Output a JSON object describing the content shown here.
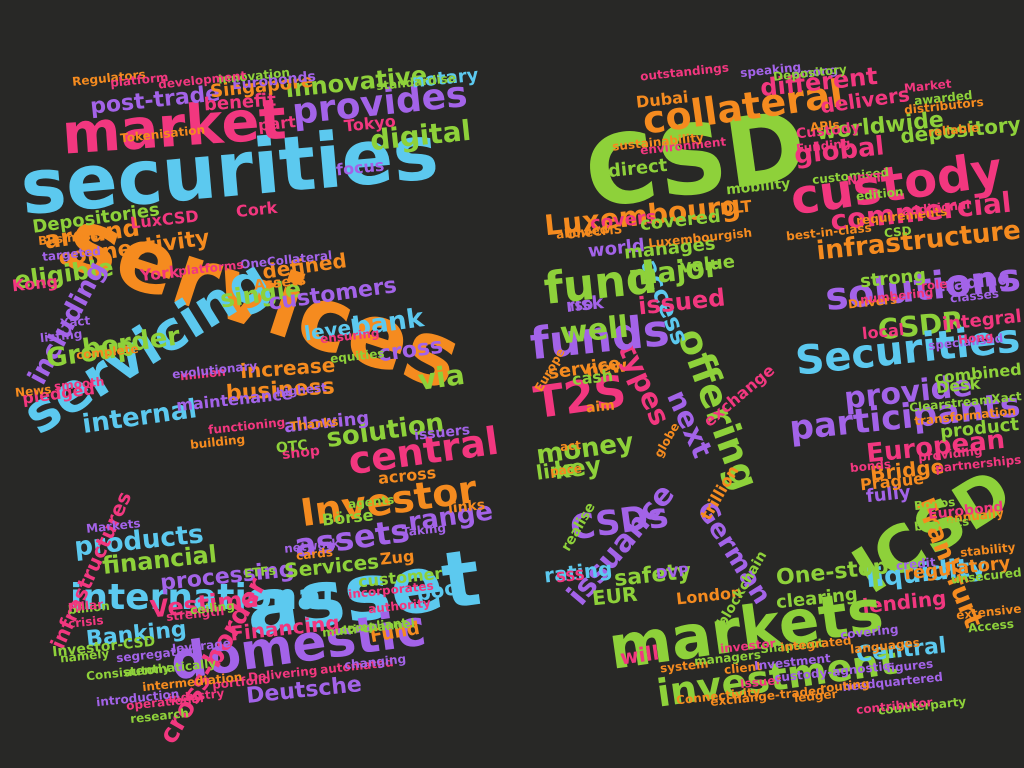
{
  "palette": {
    "background": "#282826",
    "blue": "#5cc9ef",
    "pink": "#f2377f",
    "orange": "#f58b1f",
    "purple": "#a363e8",
    "green": "#8ed13a"
  },
  "words": [
    {
      "text": "securities",
      "color": "blue"
    },
    {
      "text": "services",
      "color": "orange"
    },
    {
      "text": "market",
      "color": "pink"
    },
    {
      "text": "servicing",
      "color": "blue"
    },
    {
      "text": "asset",
      "color": "blue"
    },
    {
      "text": "domestic",
      "color": "purple"
    },
    {
      "text": "international",
      "color": "blue"
    },
    {
      "text": "provides",
      "color": "purple"
    },
    {
      "text": "digital",
      "color": "green"
    },
    {
      "text": "innovative",
      "color": "green"
    },
    {
      "text": "post-trade",
      "color": "purple"
    },
    {
      "text": "benefit",
      "color": "pink"
    },
    {
      "text": "Depositories",
      "color": "green"
    },
    {
      "text": "around",
      "color": "orange"
    },
    {
      "text": "connectivity",
      "color": "orange"
    },
    {
      "text": "eligible",
      "color": "green"
    },
    {
      "text": "including",
      "color": "purple"
    },
    {
      "text": "single",
      "color": "green"
    },
    {
      "text": "customers",
      "color": "purple"
    },
    {
      "text": "bank",
      "color": "blue"
    },
    {
      "text": "cross",
      "color": "purple"
    },
    {
      "text": "border",
      "color": "green"
    },
    {
      "text": "Group",
      "color": "green"
    },
    {
      "text": "pledged",
      "color": "pink"
    },
    {
      "text": "internal",
      "color": "blue"
    },
    {
      "text": "solution",
      "color": "green"
    },
    {
      "text": "central",
      "color": "pink"
    },
    {
      "text": "Investor",
      "color": "orange"
    },
    {
      "text": "range",
      "color": "purple"
    },
    {
      "text": "assets",
      "color": "purple"
    },
    {
      "text": "products",
      "color": "blue"
    },
    {
      "text": "financial",
      "color": "green"
    },
    {
      "text": "processing",
      "color": "purple"
    },
    {
      "text": "Services",
      "color": "green"
    },
    {
      "text": "Vestima",
      "color": "pink"
    },
    {
      "text": "Financing",
      "color": "pink"
    },
    {
      "text": "Banking",
      "color": "blue"
    },
    {
      "text": "Deutsche",
      "color": "purple"
    },
    {
      "text": "Fund",
      "color": "orange"
    },
    {
      "text": "pool",
      "color": "blue"
    },
    {
      "text": "infrastructures",
      "color": "pink"
    },
    {
      "text": "cross-border",
      "color": "pink"
    },
    {
      "text": "business",
      "color": "orange"
    },
    {
      "text": "increase",
      "color": "orange"
    },
    {
      "text": "via",
      "color": "green"
    },
    {
      "text": "level",
      "color": "blue"
    },
    {
      "text": "defined",
      "color": "orange"
    },
    {
      "text": "CSD",
      "color": "green"
    },
    {
      "text": "collateral",
      "color": "orange"
    },
    {
      "text": "custody",
      "color": "pink"
    },
    {
      "text": "delivers",
      "color": "pink"
    },
    {
      "text": "worldwide",
      "color": "green"
    },
    {
      "text": "global",
      "color": "pink"
    },
    {
      "text": "depository",
      "color": "green"
    },
    {
      "text": "different",
      "color": "pink"
    },
    {
      "text": "commercial",
      "color": "pink"
    },
    {
      "text": "infrastructure",
      "color": "orange"
    },
    {
      "text": "solutions",
      "color": "purple"
    },
    {
      "text": "CSDR",
      "color": "green"
    },
    {
      "text": "Securities",
      "color": "blue"
    },
    {
      "text": "provide",
      "color": "purple"
    },
    {
      "text": "participants",
      "color": "purple"
    },
    {
      "text": "European",
      "color": "pink"
    },
    {
      "text": "Bridge",
      "color": "orange"
    },
    {
      "text": "ICSD",
      "color": "green"
    },
    {
      "text": "Frankfurt",
      "color": "orange"
    },
    {
      "text": "liquidity",
      "color": "blue"
    },
    {
      "text": "lending",
      "color": "pink"
    },
    {
      "text": "regulatory",
      "color": "orange"
    },
    {
      "text": "markets",
      "color": "green"
    },
    {
      "text": "investment",
      "color": "green"
    },
    {
      "text": "Central",
      "color": "blue"
    },
    {
      "text": "One-stop",
      "color": "green"
    },
    {
      "text": "clearing",
      "color": "green"
    },
    {
      "text": "German",
      "color": "purple"
    },
    {
      "text": "offering",
      "color": "green"
    },
    {
      "text": "safety",
      "color": "green"
    },
    {
      "text": "CSDs",
      "color": "purple"
    },
    {
      "text": "issuance",
      "color": "purple"
    },
    {
      "text": "rating",
      "color": "blue"
    },
    {
      "text": "EUR",
      "color": "green"
    },
    {
      "text": "money",
      "color": "green"
    },
    {
      "text": "line",
      "color": "green"
    },
    {
      "text": "key",
      "color": "green"
    },
    {
      "text": "T2S",
      "color": "pink"
    },
    {
      "text": "service",
      "color": "orange"
    },
    {
      "text": "new",
      "color": "orange"
    },
    {
      "text": "types",
      "color": "pink"
    },
    {
      "text": "access",
      "color": "blue"
    },
    {
      "text": "funds",
      "color": "purple"
    },
    {
      "text": "well",
      "color": "green"
    },
    {
      "text": "risk",
      "color": "purple"
    },
    {
      "text": "issued",
      "color": "pink"
    },
    {
      "text": "major",
      "color": "green"
    },
    {
      "text": "fund",
      "color": "green"
    },
    {
      "text": "world",
      "color": "purple"
    },
    {
      "text": "Luxembourg",
      "color": "orange"
    },
    {
      "text": "covers",
      "color": "pink"
    },
    {
      "text": "covered",
      "color": "green"
    },
    {
      "text": "direct",
      "color": "green"
    },
    {
      "text": "manages",
      "color": "green"
    },
    {
      "text": "value",
      "color": "green"
    },
    {
      "text": "next",
      "color": "purple"
    },
    {
      "text": "product",
      "color": "green"
    },
    {
      "text": "integral",
      "color": "pink"
    },
    {
      "text": "trading",
      "color": "purple"
    },
    {
      "text": "strong",
      "color": "green"
    },
    {
      "text": "local",
      "color": "pink"
    },
    {
      "text": "combined",
      "color": "green"
    },
    {
      "text": "fully",
      "color": "purple"
    },
    {
      "text": "Prague",
      "color": "orange"
    },
    {
      "text": "London",
      "color": "orange"
    },
    {
      "text": "Dubai",
      "color": "orange"
    },
    {
      "text": "Tokyo",
      "color": "pink"
    },
    {
      "text": "Singapore",
      "color": "orange"
    },
    {
      "text": "Cork",
      "color": "pink"
    },
    {
      "text": "York",
      "color": "pink"
    },
    {
      "text": "Kong",
      "color": "pink"
    },
    {
      "text": "LuxCSD",
      "color": "pink"
    },
    {
      "text": "focus",
      "color": "purple"
    },
    {
      "text": "part",
      "color": "pink"
    },
    {
      "text": "notary",
      "color": "blue"
    },
    {
      "text": "Börse",
      "color": "green"
    },
    {
      "text": "customer",
      "color": "green"
    },
    {
      "text": "across",
      "color": "orange"
    },
    {
      "text": "shop",
      "color": "pink"
    },
    {
      "text": "OTC",
      "color": "green"
    },
    {
      "text": "allowing",
      "color": "purple"
    },
    {
      "text": "maintenance",
      "color": "purple"
    },
    {
      "text": "DLT",
      "color": "orange"
    },
    {
      "text": "ISO",
      "color": "purple"
    },
    {
      "text": "cash",
      "color": "green"
    },
    {
      "text": "Desk",
      "color": "green"
    },
    {
      "text": "Zug",
      "color": "orange"
    },
    {
      "text": "links",
      "color": "orange"
    },
    {
      "text": "will",
      "color": "pink"
    },
    {
      "text": "trillion",
      "color": "orange"
    },
    {
      "text": "aim",
      "color": "orange"
    },
    {
      "text": "pace",
      "color": "orange"
    },
    {
      "text": "act",
      "color": "orange"
    },
    {
      "text": "Custody",
      "color": "pink"
    },
    {
      "text": "Funding",
      "color": "pink"
    },
    {
      "text": "Eurobonds",
      "color": "purple"
    },
    {
      "text": "Regulators",
      "color": "orange"
    },
    {
      "text": "Market",
      "color": "pink"
    },
    {
      "text": "bonds",
      "color": "pink"
    },
    {
      "text": "issuers",
      "color": "purple"
    },
    {
      "text": "Assets",
      "color": "orange"
    },
    {
      "text": "Investor-CSD",
      "color": "green"
    },
    {
      "text": "Markets",
      "color": "purple"
    },
    {
      "text": "Connectivity",
      "color": "orange"
    },
    {
      "text": "blockchain",
      "color": "green"
    },
    {
      "text": "Eurobond",
      "color": "pink"
    },
    {
      "text": "Access",
      "color": "green"
    },
    {
      "text": "OneCMS",
      "color": "orange"
    },
    {
      "text": "DVP",
      "color": "purple"
    },
    {
      "text": "SSS",
      "color": "pink"
    },
    {
      "text": "Tokenisation",
      "color": "orange"
    },
    {
      "text": "standardise",
      "color": "green"
    },
    {
      "text": "innovation",
      "color": "green"
    },
    {
      "text": "development",
      "color": "pink"
    },
    {
      "text": "platform",
      "color": "pink"
    },
    {
      "text": "million",
      "color": "pink"
    },
    {
      "text": "network",
      "color": "purple"
    },
    {
      "text": "cards",
      "color": "orange"
    },
    {
      "text": "ETFs",
      "color": "green"
    },
    {
      "text": "crisis",
      "color": "pink"
    },
    {
      "text": "segregation",
      "color": "purple"
    },
    {
      "text": "leverage",
      "color": "purple"
    },
    {
      "text": "strength",
      "color": "pink"
    },
    {
      "text": "billion",
      "color": "green"
    },
    {
      "text": "Snapshot",
      "color": "green"
    },
    {
      "text": "system",
      "color": "orange"
    },
    {
      "text": "managers",
      "color": "green"
    },
    {
      "text": "investor",
      "color": "pink"
    },
    {
      "text": "integrated",
      "color": "orange"
    },
    {
      "text": "covering",
      "color": "purple"
    },
    {
      "text": "headquartered",
      "color": "purple"
    },
    {
      "text": "counterparty",
      "color": "green"
    },
    {
      "text": "languages",
      "color": "orange"
    },
    {
      "text": "figures",
      "color": "purple"
    },
    {
      "text": "credit",
      "color": "purple"
    },
    {
      "text": "Bonos",
      "color": "green"
    },
    {
      "text": "providing",
      "color": "pink"
    },
    {
      "text": "partnerships",
      "color": "pink"
    },
    {
      "text": "transformation",
      "color": "orange"
    },
    {
      "text": "ClearstreamXact",
      "color": "green"
    },
    {
      "text": "specialised",
      "color": "purple"
    },
    {
      "text": "edition",
      "color": "green"
    },
    {
      "text": "requirements",
      "color": "orange"
    },
    {
      "text": "additional",
      "color": "pink"
    },
    {
      "text": "Drivers",
      "color": "orange"
    },
    {
      "text": "numbering",
      "color": "pink"
    },
    {
      "text": "extensive",
      "color": "orange"
    },
    {
      "text": "unsecured",
      "color": "green"
    },
    {
      "text": "annually",
      "color": "orange"
    },
    {
      "text": "benefits",
      "color": "green"
    },
    {
      "text": "stability",
      "color": "orange"
    },
    {
      "text": "functioning",
      "color": "pink"
    },
    {
      "text": "building",
      "color": "orange"
    },
    {
      "text": "evolutionary",
      "color": "purple"
    },
    {
      "text": "Xact",
      "color": "purple"
    },
    {
      "text": "OneCollateral",
      "color": "purple"
    },
    {
      "text": "platforms",
      "color": "pink"
    },
    {
      "text": "complete",
      "color": "orange"
    },
    {
      "text": "smooth",
      "color": "pink"
    },
    {
      "text": "listing",
      "color": "purple"
    },
    {
      "text": "Business",
      "color": "orange"
    },
    {
      "text": "targeted",
      "color": "purple"
    },
    {
      "text": "ensuring",
      "color": "pink"
    },
    {
      "text": "equities",
      "color": "green"
    },
    {
      "text": "highest",
      "color": "purple"
    },
    {
      "text": "Thanks",
      "color": "orange"
    },
    {
      "text": "agents",
      "color": "green"
    },
    {
      "text": "Taking",
      "color": "purple"
    },
    {
      "text": "compliant",
      "color": "green"
    },
    {
      "text": "multi-channel",
      "color": "green"
    },
    {
      "text": "automated",
      "color": "pink"
    },
    {
      "text": "Delivering",
      "color": "pink"
    },
    {
      "text": "portfolio",
      "color": "pink"
    },
    {
      "text": "automatically",
      "color": "green"
    },
    {
      "text": "intermediation",
      "color": "orange"
    },
    {
      "text": "operational",
      "color": "pink"
    },
    {
      "text": "industry",
      "color": "pink"
    },
    {
      "text": "Consistently",
      "color": "green"
    },
    {
      "text": "introduction",
      "color": "purple"
    },
    {
      "text": "namely",
      "color": "green"
    },
    {
      "text": "Pillar",
      "color": "pink"
    },
    {
      "text": "ceiling",
      "color": "green"
    },
    {
      "text": "research",
      "color": "green"
    },
    {
      "text": "changing",
      "color": "purple"
    },
    {
      "text": "authority",
      "color": "pink"
    },
    {
      "text": "incorporates",
      "color": "pink"
    },
    {
      "text": "client",
      "color": "orange"
    },
    {
      "text": "Investment",
      "color": "purple"
    },
    {
      "text": "Issuer",
      "color": "pink"
    },
    {
      "text": "routing",
      "color": "orange"
    },
    {
      "text": "ledger",
      "color": "orange"
    },
    {
      "text": "exchange-traded",
      "color": "orange"
    },
    {
      "text": "custody-agnostic",
      "color": "purple"
    },
    {
      "text": "contributor",
      "color": "pink"
    },
    {
      "text": "customised",
      "color": "green"
    },
    {
      "text": "awarded",
      "color": "green"
    },
    {
      "text": "reliable",
      "color": "orange"
    },
    {
      "text": "outstandings",
      "color": "pink"
    },
    {
      "text": "environment",
      "color": "pink"
    },
    {
      "text": "allowed",
      "color": "orange"
    },
    {
      "text": "sustainability",
      "color": "orange"
    },
    {
      "text": "Luxembourgish",
      "color": "orange"
    },
    {
      "text": "speaking",
      "color": "purple"
    },
    {
      "text": "among",
      "color": "purple"
    },
    {
      "text": "distributors",
      "color": "orange"
    },
    {
      "text": "best-in-class",
      "color": "orange"
    },
    {
      "text": "classes",
      "color": "purple"
    },
    {
      "text": "exchange",
      "color": "pink"
    },
    {
      "text": "mobility",
      "color": "green"
    },
    {
      "text": "Europe",
      "color": "orange"
    },
    {
      "text": "globe",
      "color": "orange"
    },
    {
      "text": "realise",
      "color": "green"
    },
    {
      "text": "Depository",
      "color": "green"
    },
    {
      "text": "APIs",
      "color": "orange"
    },
    {
      "text": "NEXT",
      "color": "pink"
    },
    {
      "text": "CSD",
      "color": "green"
    },
    {
      "text": "role",
      "color": "pink"
    },
    {
      "text": "Hong",
      "color": "pink"
    },
    {
      "text": "News",
      "color": "orange"
    }
  ]
}
